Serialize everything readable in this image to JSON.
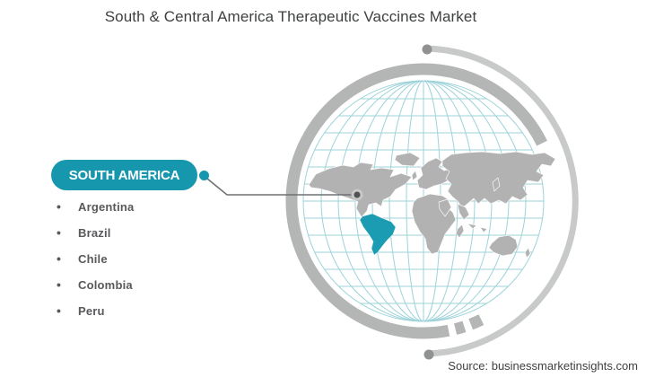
{
  "title": "South & Central America Therapeutic Vaccines Market",
  "callout": {
    "label": "SOUTH AMERICA"
  },
  "countries": [
    "Argentina",
    "Brazil",
    "Chile",
    "Colombia",
    "Peru"
  ],
  "source": "Source: businessmarketinsights.com",
  "chart_data": {
    "type": "table",
    "title": "South & Central America Therapeutic Vaccines Market",
    "highlighted_region": "South America",
    "categories": [
      "Argentina",
      "Brazil",
      "Chile",
      "Colombia",
      "Peru"
    ],
    "annotations": [
      "SOUTH AMERICA"
    ]
  },
  "colors": {
    "accent": "#1797ad",
    "accent_map": "#1b9cb3",
    "graticule": "#9ed3da",
    "continent": "#b2b2b2",
    "ring": "#b4b6b5",
    "ring_light": "#c8cac9",
    "ring_dot": "#8f9291",
    "marker": "#515254",
    "connector": "#6f7072",
    "title_text": "#3f4041",
    "list_text": "#58595b"
  }
}
